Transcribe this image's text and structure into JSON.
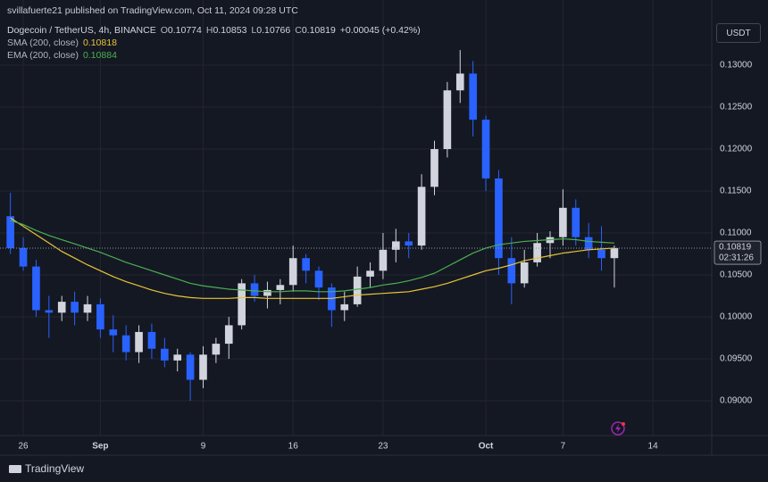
{
  "chart_data": {
    "type": "candlestick",
    "publisher_line": "svillafuerte21 published on TradingView.com, Oct 11, 2024 09:28 UTC",
    "symbol": "Dogecoin / TetherUS, 4h, BINANCE",
    "ohlc": [
      {
        "label": "O",
        "value": 0.10774
      },
      {
        "label": "H",
        "value": 0.10853
      },
      {
        "label": "L",
        "value": 0.10766
      },
      {
        "label": "C",
        "value": 0.10819
      }
    ],
    "change": "+0.00045 (+0.42%)",
    "currency": "USDT",
    "last_price": 0.10819,
    "countdown": "02:31:26",
    "footer": "TradingView",
    "up_color": "#d1d4dc",
    "down_color": "#2962ff",
    "grid": true,
    "x": [
      25,
      26,
      27,
      28,
      29,
      30,
      31,
      32,
      33,
      34,
      35,
      36,
      37,
      38,
      39,
      40,
      41,
      42,
      43,
      44,
      45,
      46,
      47,
      48,
      49,
      50,
      51,
      52,
      53,
      54,
      55,
      56,
      57,
      58,
      59,
      60,
      61,
      62,
      63,
      64,
      65,
      66,
      67,
      68,
      69,
      70,
      71,
      72
    ],
    "open": [
      0.112,
      0.1082,
      0.106,
      0.1008,
      0.1005,
      0.1018,
      0.1005,
      0.1015,
      0.0985,
      0.0978,
      0.0958,
      0.0982,
      0.0962,
      0.0948,
      0.0955,
      0.0925,
      0.0955,
      0.0968,
      0.099,
      0.104,
      0.1025,
      0.1032,
      0.1038,
      0.107,
      0.1055,
      0.1035,
      0.1008,
      0.1015,
      0.1048,
      0.1055,
      0.108,
      0.109,
      0.1085,
      0.1155,
      0.12,
      0.127,
      0.129,
      0.1235,
      0.1165,
      0.107,
      0.104,
      0.1065,
      0.1088,
      0.1095,
      0.113,
      0.1095,
      0.108,
      0.107
    ],
    "high": [
      0.1148,
      0.1095,
      0.1068,
      0.1025,
      0.1025,
      0.103,
      0.1025,
      0.1022,
      0.1002,
      0.099,
      0.099,
      0.0992,
      0.0975,
      0.0962,
      0.0958,
      0.0965,
      0.0975,
      0.1,
      0.1045,
      0.105,
      0.1042,
      0.1045,
      0.1085,
      0.1075,
      0.106,
      0.104,
      0.103,
      0.106,
      0.1065,
      0.11,
      0.1105,
      0.11,
      0.117,
      0.121,
      0.128,
      0.1318,
      0.1305,
      0.124,
      0.1175,
      0.1095,
      0.108,
      0.11,
      0.1102,
      0.1152,
      0.114,
      0.1112,
      0.1108,
      0.1085
    ],
    "low": [
      0.1075,
      0.1055,
      0.1,
      0.0975,
      0.0995,
      0.099,
      0.0995,
      0.0975,
      0.0958,
      0.0948,
      0.0945,
      0.095,
      0.094,
      0.0935,
      0.09,
      0.0915,
      0.0945,
      0.095,
      0.0985,
      0.1018,
      0.101,
      0.1015,
      0.103,
      0.104,
      0.102,
      0.0988,
      0.0995,
      0.1012,
      0.1035,
      0.1045,
      0.1065,
      0.107,
      0.108,
      0.1145,
      0.119,
      0.1255,
      0.1215,
      0.115,
      0.105,
      0.1015,
      0.1035,
      0.106,
      0.107,
      0.1085,
      0.1085,
      0.107,
      0.1055,
      0.1035
    ],
    "close": [
      0.1082,
      0.106,
      0.1008,
      0.1005,
      0.1018,
      0.1005,
      0.1015,
      0.0985,
      0.0978,
      0.0958,
      0.0982,
      0.0962,
      0.0948,
      0.0955,
      0.0925,
      0.0955,
      0.0968,
      0.099,
      0.104,
      0.1025,
      0.1032,
      0.1038,
      0.107,
      0.1055,
      0.1035,
      0.1008,
      0.1015,
      0.1048,
      0.1055,
      0.108,
      0.109,
      0.1085,
      0.1155,
      0.12,
      0.127,
      0.129,
      0.1235,
      0.1165,
      0.107,
      0.104,
      0.1065,
      0.1088,
      0.1095,
      0.113,
      0.1095,
      0.108,
      0.107,
      0.1082
    ],
    "series": [
      {
        "name": "SMA (200, close)",
        "color": "#e8c536",
        "last": 0.10818,
        "values": [
          0.1118,
          0.1108,
          0.1098,
          0.1088,
          0.1078,
          0.107,
          0.1062,
          0.1055,
          0.1048,
          0.1042,
          0.1037,
          0.1032,
          0.1028,
          0.1025,
          0.1023,
          0.1022,
          0.1022,
          0.1022,
          0.1023,
          0.1023,
          0.1022,
          0.1022,
          0.1022,
          0.1022,
          0.1022,
          0.1022,
          0.1024,
          0.1026,
          0.1027,
          0.1028,
          0.1029,
          0.103,
          0.1033,
          0.1036,
          0.104,
          0.1045,
          0.105,
          0.1055,
          0.1058,
          0.1062,
          0.1067,
          0.107,
          0.1073,
          0.1076,
          0.1078,
          0.108,
          0.1081,
          0.1082
        ]
      },
      {
        "name": "EMA (200, close)",
        "color": "#4caf50",
        "last": 0.10884,
        "values": [
          0.1115,
          0.111,
          0.1103,
          0.1097,
          0.1092,
          0.1087,
          0.1082,
          0.1077,
          0.1071,
          0.1065,
          0.106,
          0.1055,
          0.105,
          0.1045,
          0.104,
          0.1037,
          0.1035,
          0.1033,
          0.1032,
          0.1031,
          0.103,
          0.103,
          0.1031,
          0.1031,
          0.103,
          0.103,
          0.1031,
          0.1033,
          0.1035,
          0.1038,
          0.104,
          0.1043,
          0.1047,
          0.1052,
          0.106,
          0.1068,
          0.1076,
          0.1082,
          0.1086,
          0.1088,
          0.109,
          0.1091,
          0.1092,
          0.1093,
          0.1092,
          0.109,
          0.1089,
          0.1088
        ]
      }
    ],
    "xlim": [
      24.19,
      79.58
    ],
    "ylim": [
      0.08585,
      0.13777
    ],
    "xticks": [
      26,
      {
        "value": 32,
        "label": "Sep"
      },
      {
        "value": 40,
        "label": "9"
      },
      {
        "value": 47,
        "label": "16"
      },
      {
        "value": 54,
        "label": "23"
      },
      {
        "value": 62,
        "label": "Oct"
      },
      {
        "value": 68,
        "label": "7"
      },
      {
        "value": 75,
        "label": "14"
      }
    ],
    "yticks": [
      {
        "value": 0.09,
        "label": "0.09000"
      },
      {
        "value": 0.095,
        "label": "0.09500"
      },
      {
        "value": 0.1,
        "label": "0.10000"
      },
      {
        "value": 0.105,
        "label": "0.10500"
      },
      {
        "value": 0.11,
        "label": "0.11000"
      },
      {
        "value": 0.115,
        "label": "0.11500"
      },
      {
        "value": 0.12,
        "label": "0.12000"
      },
      {
        "value": 0.125,
        "label": "0.12500"
      },
      {
        "value": 0.13,
        "label": "0.13000"
      }
    ]
  }
}
